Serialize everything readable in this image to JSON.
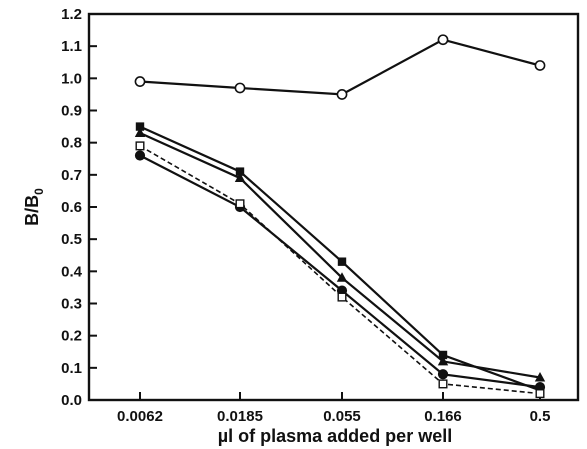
{
  "chart_data": {
    "type": "line",
    "categories": [
      "0.0062",
      "0.0185",
      "0.055",
      "0.166",
      "0.5"
    ],
    "xlabel": "µl of plasma added per well",
    "ylabel": {
      "base": "B/B",
      "subscript": "0"
    },
    "ylim": [
      0.0,
      1.2
    ],
    "yticks": [
      "0.0",
      "0.1",
      "0.2",
      "0.3",
      "0.4",
      "0.5",
      "0.6",
      "0.7",
      "0.8",
      "0.9",
      "1.0",
      "1.1",
      "1.2"
    ],
    "grid": false,
    "series": [
      {
        "marker": "open-circle",
        "line": "solid",
        "values": [
          0.99,
          0.97,
          0.95,
          1.12,
          1.04
        ]
      },
      {
        "marker": "filled-square",
        "line": "solid",
        "values": [
          0.85,
          0.71,
          0.43,
          0.14,
          0.03
        ]
      },
      {
        "marker": "filled-triangle",
        "line": "solid",
        "values": [
          0.83,
          0.69,
          0.38,
          0.12,
          0.07
        ]
      },
      {
        "marker": "filled-circle",
        "line": "solid",
        "values": [
          0.76,
          0.6,
          0.34,
          0.08,
          0.04
        ]
      },
      {
        "marker": "open-square",
        "line": "dashed",
        "values": [
          0.79,
          0.61,
          0.32,
          0.05,
          0.02
        ]
      }
    ],
    "colors": {
      "ink": "#111111",
      "background": "#ffffff"
    }
  }
}
